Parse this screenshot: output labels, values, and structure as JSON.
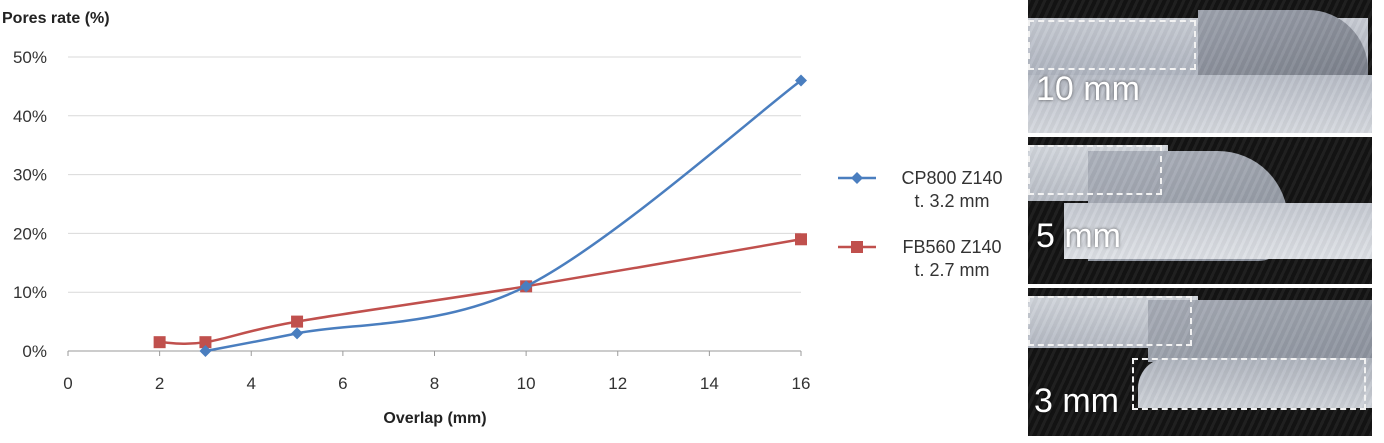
{
  "chart_data": {
    "type": "line",
    "ylabel": "Pores rate (%)",
    "xlabel": "Overlap (mm)",
    "xlim": [
      0,
      16
    ],
    "ylim": [
      0,
      50
    ],
    "x_ticks": [
      "0",
      "2",
      "4",
      "6",
      "8",
      "10",
      "12",
      "14",
      "16"
    ],
    "y_ticks": [
      "0%",
      "10%",
      "20%",
      "30%",
      "40%",
      "50%"
    ],
    "grid": "horizontal",
    "legend_position": "right",
    "series": [
      {
        "name_line1": "CP800 Z140",
        "name_line2": "t. 3.2 mm",
        "color": "#4a7ebf",
        "marker": "diamond",
        "x": [
          3,
          5,
          10,
          16
        ],
        "y": [
          0,
          3,
          11,
          46
        ]
      },
      {
        "name_line1": "FB560 Z140",
        "name_line2": "t. 2.7 mm",
        "color": "#c0504d",
        "marker": "square",
        "x": [
          2,
          3,
          5,
          10,
          16
        ],
        "y": [
          1.5,
          1.5,
          5,
          11,
          19
        ]
      }
    ]
  },
  "photos": [
    {
      "label": "10 mm"
    },
    {
      "label": "5 mm"
    },
    {
      "label": "3 mm"
    }
  ]
}
